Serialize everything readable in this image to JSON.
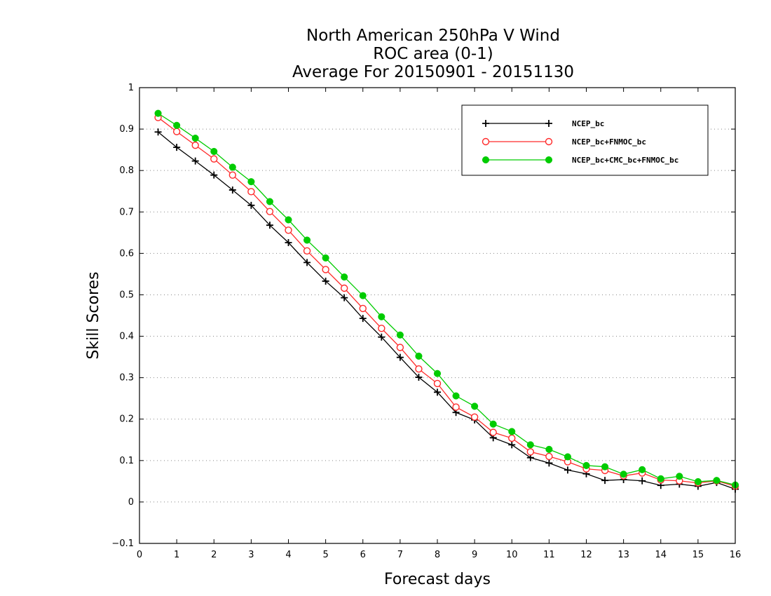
{
  "chart_data": {
    "type": "line",
    "title": [
      "North American 250hPa V Wind",
      "ROC area (0-1)",
      "Average For 20150901 - 20151130"
    ],
    "xlabel": "Forecast days",
    "ylabel": "Skill Scores",
    "xlim": [
      0,
      16
    ],
    "ylim": [
      -0.1,
      1
    ],
    "x_ticks": [
      "0",
      "1",
      "2",
      "3",
      "4",
      "5",
      "6",
      "7",
      "8",
      "9",
      "10",
      "11",
      "12",
      "13",
      "14",
      "15",
      "16"
    ],
    "y_ticks": [
      "−0.1",
      "0",
      "0.1",
      "0.2",
      "0.3",
      "0.4",
      "0.5",
      "0.6",
      "0.7",
      "0.8",
      "0.9",
      "1"
    ],
    "grid": "horizontal-dotted",
    "legend_position": "top-right",
    "x": [
      0.5,
      1,
      1.5,
      2,
      2.5,
      3,
      3.5,
      4,
      4.5,
      5,
      5.5,
      6,
      6.5,
      7,
      7.5,
      8,
      8.5,
      9,
      9.5,
      10,
      10.5,
      11,
      11.5,
      12,
      12.5,
      13,
      13.5,
      14,
      14.5,
      15,
      15.5,
      16
    ],
    "series": [
      {
        "name": "NCEP_bc",
        "color": "#000000",
        "marker": "plus",
        "values": [
          0.893,
          0.856,
          0.823,
          0.789,
          0.753,
          0.716,
          0.668,
          0.626,
          0.578,
          0.533,
          0.493,
          0.443,
          0.398,
          0.349,
          0.301,
          0.265,
          0.216,
          0.198,
          0.155,
          0.138,
          0.107,
          0.094,
          0.077,
          0.068,
          0.052,
          0.054,
          0.051,
          0.04,
          0.043,
          0.038,
          0.047,
          0.031
        ]
      },
      {
        "name": "NCEP_bc+FNMOC_bc",
        "color": "#ff2a2a",
        "marker": "open-circle",
        "values": [
          0.928,
          0.894,
          0.861,
          0.828,
          0.789,
          0.749,
          0.701,
          0.656,
          0.606,
          0.561,
          0.516,
          0.467,
          0.419,
          0.373,
          0.321,
          0.286,
          0.229,
          0.205,
          0.168,
          0.154,
          0.121,
          0.11,
          0.097,
          0.08,
          0.076,
          0.063,
          0.07,
          0.053,
          0.051,
          0.046,
          0.051,
          0.038
        ]
      },
      {
        "name": "NCEP_bc+CMC_bc+FNMOC_bc",
        "color": "#00cc00",
        "marker": "filled-circle",
        "values": [
          0.938,
          0.909,
          0.878,
          0.846,
          0.808,
          0.773,
          0.725,
          0.681,
          0.632,
          0.589,
          0.543,
          0.498,
          0.447,
          0.403,
          0.352,
          0.31,
          0.256,
          0.231,
          0.188,
          0.17,
          0.138,
          0.127,
          0.109,
          0.088,
          0.085,
          0.067,
          0.078,
          0.056,
          0.062,
          0.049,
          0.052,
          0.041
        ]
      }
    ]
  }
}
